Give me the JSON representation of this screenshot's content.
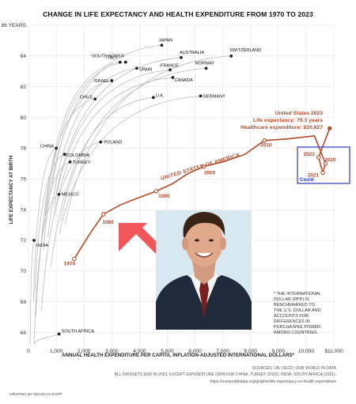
{
  "chart_data": {
    "type": "line",
    "title": "CHANGE IN LIFE EXPECTANCY AND HEALTH EXPENDITURE FROM 1970 TO 2023",
    "xlabel": "ANNUAL HEALTH EXPENDITURE PER CAPITA, INFLATION-ADJUSTED INTERNATIONAL DOLLARS*",
    "ylabel": "LIFE EXPECTANCY AT BIRTH",
    "xlim": [
      0,
      11000
    ],
    "ylim": [
      65,
      86
    ],
    "x_ticks": [
      "0",
      "1,000",
      "2,000",
      "3,000",
      "4,000",
      "5,000",
      "6,000",
      "7,000",
      "8,000",
      "9,000",
      "10,000",
      "$11,000"
    ],
    "y_ticks": [
      "66",
      "68",
      "70",
      "72",
      "74",
      "76",
      "78",
      "80",
      "82",
      "84",
      "86 YEARS"
    ],
    "grid": true,
    "highlight_series": {
      "name": "UNITED STATES OF AMERICA",
      "color": "#b64926",
      "points": [
        {
          "x": 1650,
          "y": 70.8
        },
        {
          "x": 2200,
          "y": 72.4
        },
        {
          "x": 2700,
          "y": 73.7
        },
        {
          "x": 3300,
          "y": 74.3
        },
        {
          "x": 4000,
          "y": 74.8
        },
        {
          "x": 4600,
          "y": 75.2
        },
        {
          "x": 5200,
          "y": 75.7
        },
        {
          "x": 5700,
          "y": 76.3
        },
        {
          "x": 6300,
          "y": 76.8
        },
        {
          "x": 7000,
          "y": 77.1
        },
        {
          "x": 7800,
          "y": 77.6
        },
        {
          "x": 8500,
          "y": 78.5
        },
        {
          "x": 9300,
          "y": 78.6
        },
        {
          "x": 9800,
          "y": 78.7
        },
        {
          "x": 10300,
          "y": 78.8
        },
        {
          "x": 10700,
          "y": 77.0
        },
        {
          "x": 10600,
          "y": 76.4
        },
        {
          "x": 10450,
          "y": 77.4
        },
        {
          "x": 10850,
          "y": 79.3
        }
      ],
      "labeled_points": [
        {
          "label": "1970",
          "x": 1650,
          "y": 70.8
        },
        {
          "label": "1980",
          "x": 2700,
          "y": 73.7
        },
        {
          "label": "1990",
          "x": 4600,
          "y": 75.2
        },
        {
          "label": "2000",
          "x": 6300,
          "y": 76.8
        },
        {
          "label": "2010",
          "x": 8500,
          "y": 78.5
        },
        {
          "label": "2020",
          "x": 10700,
          "y": 77.0
        },
        {
          "label": "2021",
          "x": 10600,
          "y": 76.4
        },
        {
          "label": "2022",
          "x": 10450,
          "y": 77.4
        }
      ]
    },
    "countries": [
      {
        "name": "JAPAN",
        "x": 4800,
        "y": 84.7
      },
      {
        "name": "SOUTH KOREA",
        "x": 3500,
        "y": 83.6
      },
      {
        "name": "SWITZERLAND",
        "x": 7300,
        "y": 84.0
      },
      {
        "name": "AUSTRALIA",
        "x": 5500,
        "y": 83.9
      },
      {
        "name": "ITALY",
        "x": 3300,
        "y": 83.6
      },
      {
        "name": "SPAIN",
        "x": 3900,
        "y": 83.2
      },
      {
        "name": "FRANCE",
        "x": 5100,
        "y": 83.1
      },
      {
        "name": "NORWAY",
        "x": 6400,
        "y": 83.2
      },
      {
        "name": "ISRAEL",
        "x": 3000,
        "y": 82.4
      },
      {
        "name": "CANADA",
        "x": 5200,
        "y": 82.6
      },
      {
        "name": "CHILE",
        "x": 2400,
        "y": 81.2
      },
      {
        "name": "U.K.",
        "x": 4500,
        "y": 81.3
      },
      {
        "name": "GERMANY",
        "x": 6200,
        "y": 81.4
      },
      {
        "name": "CHINA",
        "x": 1000,
        "y": 78.0
      },
      {
        "name": "POLAND",
        "x": 2600,
        "y": 78.4
      },
      {
        "name": "COLOMBIA",
        "x": 1300,
        "y": 77.6
      },
      {
        "name": "TURKEY",
        "x": 1500,
        "y": 77.1
      },
      {
        "name": "MEXICO",
        "x": 1100,
        "y": 75.0
      },
      {
        "name": "INDIA",
        "x": 200,
        "y": 72.0
      },
      {
        "name": "SOUTH AFRICA",
        "x": 1100,
        "y": 65.9
      }
    ],
    "annotations": {
      "us_2023": [
        "United States 2023",
        "Life expectancy: 79.3 years",
        "Healthcare expenditure: $10,827"
      ],
      "covid": "Covid"
    }
  },
  "footnote": [
    "* THE INTERNATIONAL",
    "DOLLAR (PPP) IS",
    "BENCHMARKED TO",
    "THE U.S. DOLLAR AND",
    "ACCOUNTS FOR",
    "DIFFERENCES IN",
    "PURCHASING POWER",
    "AMONG COUNTRIES."
  ],
  "sources": [
    "SOURCES: UN; OECD; OUR WORLD IN DATA",
    "ALL DATASETS END IN 2023, EXCEPT EXPENDITURE DATA FOR CHINA, TURKEY (2022); INDIA; SOUTH AFRICA (2021).",
    "https://ourworldindata.org/grapher/life-expectancy-vs-health-expenditure"
  ],
  "credit": "GRAPHIC BY NICOLAS RAPP",
  "colors": {
    "us_line": "#b64926",
    "covid_box": "#2b3bc4",
    "arrow": "#f0565a",
    "country_lines": "#bdbdbd",
    "grid": "#e4e4e4"
  },
  "inset_photo": {
    "description_icon": "portrait-photo"
  }
}
